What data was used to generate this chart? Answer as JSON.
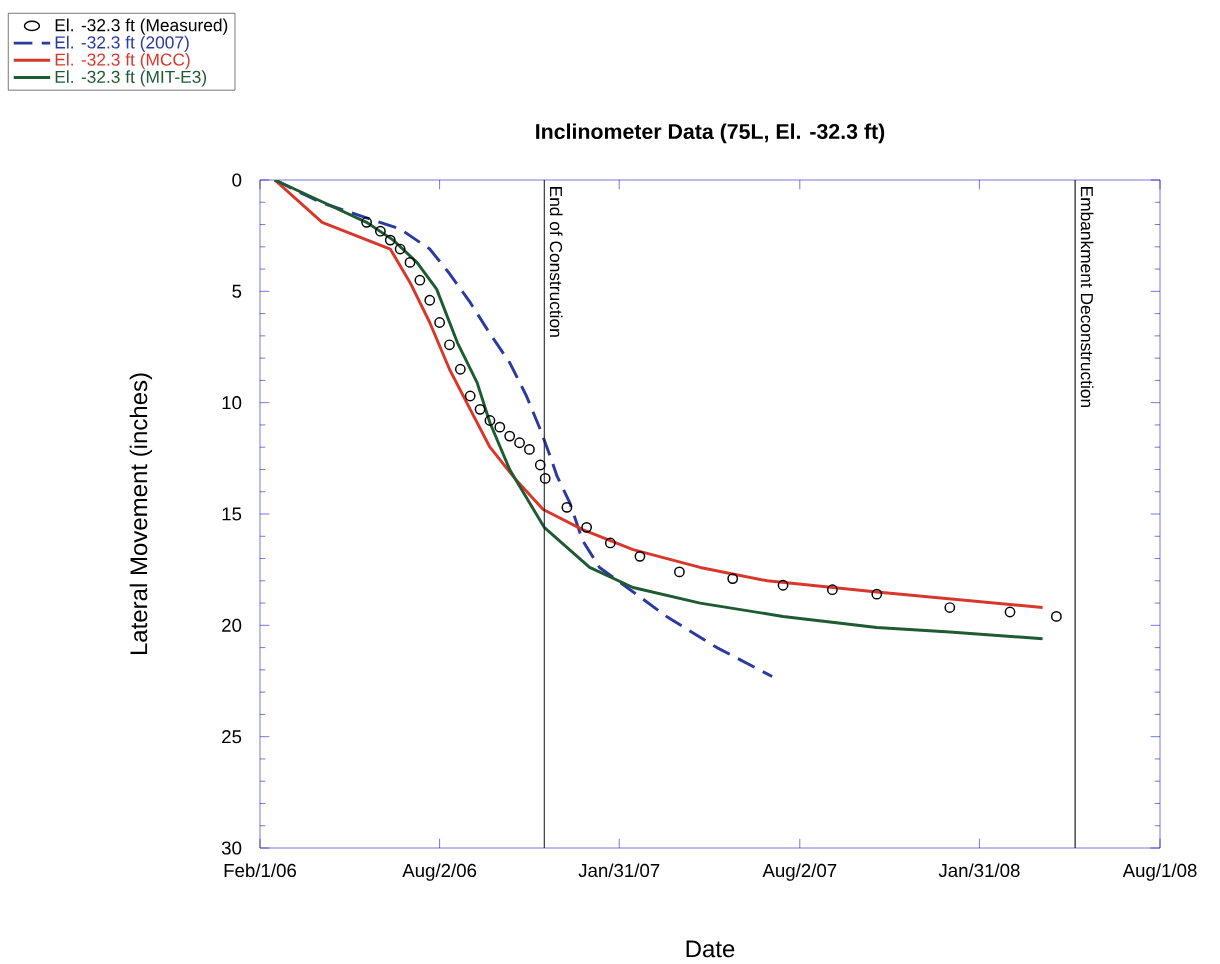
{
  "chart_data": {
    "type": "line",
    "title": "Inclinometer Data (75L, El. -32.3 ft)",
    "xlabel": "Date",
    "ylabel": "Lateral Movement (inches)",
    "xlim": [
      "2006-02-01",
      "2008-08-01"
    ],
    "xticks": [
      {
        "value": "2006-02-01",
        "label": "Feb/1/06"
      },
      {
        "value": "2006-08-02",
        "label": "Aug/2/06"
      },
      {
        "value": "2007-01-31",
        "label": "Jan/31/07"
      },
      {
        "value": "2007-08-02",
        "label": "Aug/2/07"
      },
      {
        "value": "2008-01-31",
        "label": "Jan/31/08"
      },
      {
        "value": "2008-08-01",
        "label": "Aug/1/08"
      }
    ],
    "ylim": [
      30,
      0
    ],
    "yticks": [
      0,
      5,
      10,
      15,
      20,
      25,
      30
    ],
    "grid": false,
    "legend": "top left",
    "ref_lines": [
      {
        "axis": "x",
        "value": "2006-11-16",
        "label": "End of Construction",
        "color": "#1a1a33"
      },
      {
        "axis": "x",
        "value": "2008-05-07",
        "label": "Embankment Deconstruction",
        "color": "#1a1a33"
      }
    ],
    "series": [
      {
        "name": "El. -32.3 ft (Measured)",
        "type": "scatter",
        "marker": "circle",
        "color": "#000000",
        "x": [
          "2006-05-20",
          "2006-06-03",
          "2006-06-13",
          "2006-06-23",
          "2006-07-03",
          "2006-07-13",
          "2006-07-23",
          "2006-08-02",
          "2006-08-12",
          "2006-08-23",
          "2006-09-02",
          "2006-09-12",
          "2006-09-22",
          "2006-10-02",
          "2006-10-12",
          "2006-10-22",
          "2006-11-01",
          "2006-11-12",
          "2006-11-17",
          "2006-12-09",
          "2006-12-29",
          "2007-01-22",
          "2007-02-21",
          "2007-04-02",
          "2007-05-26",
          "2007-07-16",
          "2007-09-04",
          "2007-10-19",
          "2008-01-01",
          "2008-03-02",
          "2008-04-18"
        ],
        "values": [
          1.9,
          2.3,
          2.7,
          3.1,
          3.7,
          4.5,
          5.4,
          6.4,
          7.4,
          8.5,
          9.7,
          10.3,
          10.8,
          11.1,
          11.5,
          11.8,
          12.1,
          12.8,
          13.4,
          14.7,
          15.6,
          16.3,
          16.9,
          17.6,
          17.9,
          18.2,
          18.4,
          18.6,
          19.2,
          19.4,
          19.6
        ]
      },
      {
        "name": "El. -32.3 ft (2007)",
        "line_style": "dashed",
        "color": "#2b3a9e",
        "x": [
          "2006-02-16",
          "2006-04-03",
          "2006-05-20",
          "2006-06-23",
          "2006-07-23",
          "2006-08-12",
          "2006-09-02",
          "2006-09-22",
          "2006-10-12",
          "2006-10-29",
          "2006-11-12",
          "2006-11-22",
          "2006-11-29",
          "2006-12-12",
          "2006-12-25",
          "2007-01-11",
          "2007-02-08",
          "2007-03-20",
          "2007-05-10",
          "2007-07-05"
        ],
        "values": [
          0,
          1.0,
          1.7,
          2.2,
          3.1,
          4.2,
          5.5,
          6.9,
          8.2,
          9.7,
          11.2,
          12.4,
          13.3,
          14.5,
          16.2,
          17.4,
          18.3,
          19.6,
          21.0,
          22.3
        ]
      },
      {
        "name": "El. -32.3 ft (MCC)",
        "line_style": "solid",
        "color": "#d9372b",
        "x": [
          "2006-02-16",
          "2006-04-05",
          "2006-06-13",
          "2006-07-03",
          "2006-07-23",
          "2006-08-12",
          "2006-09-02",
          "2006-09-22",
          "2006-10-19",
          "2006-11-15",
          "2006-12-25",
          "2007-02-14",
          "2007-04-23",
          "2007-06-30",
          "2007-10-19",
          "2008-04-04"
        ],
        "values": [
          0,
          1.9,
          3.1,
          4.6,
          6.4,
          8.5,
          10.3,
          12.0,
          13.5,
          14.8,
          15.7,
          16.6,
          17.4,
          18.0,
          18.5,
          19.2
        ]
      },
      {
        "name": "El. -32.3 ft (MIT-E3)",
        "line_style": "solid",
        "color": "#1e5a32",
        "x": [
          "2006-02-16",
          "2006-04-06",
          "2006-05-20",
          "2006-06-16",
          "2006-07-10",
          "2006-07-30",
          "2006-08-20",
          "2006-09-09",
          "2006-09-22",
          "2006-10-12",
          "2006-11-16",
          "2007-01-01",
          "2007-02-14",
          "2007-04-23",
          "2007-07-16",
          "2007-10-19",
          "2008-01-01",
          "2008-04-04"
        ],
        "values": [
          0,
          1.0,
          1.9,
          2.7,
          3.7,
          4.9,
          7.3,
          9.1,
          10.9,
          13.0,
          15.6,
          17.4,
          18.3,
          19.0,
          19.6,
          20.1,
          20.3,
          20.6
        ]
      }
    ]
  }
}
